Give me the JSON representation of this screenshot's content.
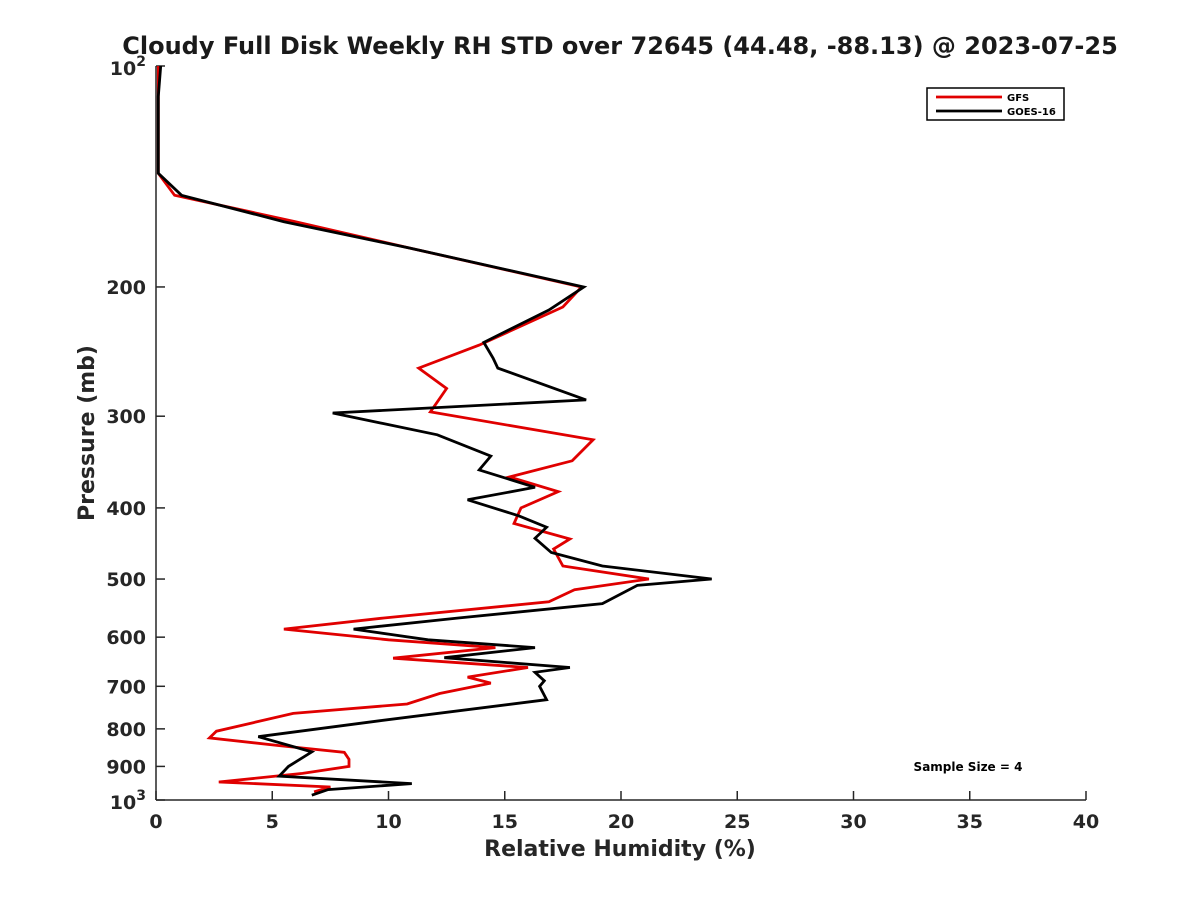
{
  "chart_data": {
    "type": "line",
    "title": "Cloudy Full Disk Weekly RH STD over 72645 (44.48, -88.13) @ 2023-07-25",
    "xlabel": "Relative Humidity (%)",
    "ylabel": "Pressure (mb)",
    "xlim": [
      0,
      40
    ],
    "ylim": [
      100,
      1000
    ],
    "y_scale": "log",
    "y_reversed": false,
    "xticks": [
      0,
      5,
      10,
      15,
      20,
      25,
      30,
      35,
      40
    ],
    "yticks": [
      {
        "value": 100,
        "base": "10",
        "exp": "2"
      },
      {
        "value": 200,
        "label": "200"
      },
      {
        "value": 300,
        "label": "300"
      },
      {
        "value": 400,
        "label": "400"
      },
      {
        "value": 500,
        "label": "500"
      },
      {
        "value": 600,
        "label": "600"
      },
      {
        "value": 700,
        "label": "700"
      },
      {
        "value": 800,
        "label": "800"
      },
      {
        "value": 900,
        "label": "900"
      },
      {
        "value": 1000,
        "base": "10",
        "exp": "3"
      }
    ],
    "grid": false,
    "legend_position": "top-right",
    "annotation": "Sample Size = 4",
    "series": [
      {
        "name": "GFS",
        "color": "#e00000",
        "points": [
          [
            0.1,
            100
          ],
          [
            0.1,
            110
          ],
          [
            0.1,
            125
          ],
          [
            0.1,
            135
          ],
          [
            0.1,
            140
          ],
          [
            0.8,
            150
          ],
          [
            6.0,
            163
          ],
          [
            10.9,
            177
          ],
          [
            18.3,
            200
          ],
          [
            17.5,
            213
          ],
          [
            13.9,
            240
          ],
          [
            11.3,
            258
          ],
          [
            12.5,
            275
          ],
          [
            11.8,
            296
          ],
          [
            18.8,
            323
          ],
          [
            17.9,
            345
          ],
          [
            15.2,
            363
          ],
          [
            17.3,
            380
          ],
          [
            15.7,
            400
          ],
          [
            15.4,
            420
          ],
          [
            17.8,
            441
          ],
          [
            17.1,
            455
          ],
          [
            17.5,
            480
          ],
          [
            21.2,
            500
          ],
          [
            18.0,
            517
          ],
          [
            16.9,
            537
          ],
          [
            9.8,
            565
          ],
          [
            5.5,
            585
          ],
          [
            10.0,
            605
          ],
          [
            14.6,
            620
          ],
          [
            10.2,
            641
          ],
          [
            16.0,
            660
          ],
          [
            13.4,
            680
          ],
          [
            14.4,
            693
          ],
          [
            12.2,
            716
          ],
          [
            10.8,
            740
          ],
          [
            5.9,
            762
          ],
          [
            2.6,
            806
          ],
          [
            2.3,
            823
          ],
          [
            5.3,
            843
          ],
          [
            8.1,
            861
          ],
          [
            8.3,
            880
          ],
          [
            8.3,
            900
          ],
          [
            6.3,
            920
          ],
          [
            2.7,
            945
          ],
          [
            7.5,
            960
          ],
          [
            6.8,
            975
          ]
        ]
      },
      {
        "name": "GOES-16",
        "color": "#000000",
        "points": [
          [
            0.2,
            100
          ],
          [
            0.1,
            110
          ],
          [
            0.1,
            125
          ],
          [
            0.1,
            135
          ],
          [
            0.1,
            140
          ],
          [
            1.1,
            150
          ],
          [
            5.5,
            163
          ],
          [
            10.9,
            177
          ],
          [
            18.4,
            200
          ],
          [
            16.9,
            215
          ],
          [
            14.1,
            238
          ],
          [
            14.5,
            250
          ],
          [
            14.7,
            258
          ],
          [
            18.5,
            285
          ],
          [
            7.6,
            297
          ],
          [
            12.1,
            318
          ],
          [
            14.4,
            340
          ],
          [
            13.9,
            355
          ],
          [
            16.3,
            375
          ],
          [
            13.4,
            390
          ],
          [
            15.6,
            410
          ],
          [
            16.8,
            425
          ],
          [
            16.3,
            440
          ],
          [
            17.0,
            460
          ],
          [
            19.2,
            480
          ],
          [
            23.9,
            500
          ],
          [
            20.7,
            510
          ],
          [
            19.2,
            540
          ],
          [
            13.0,
            565
          ],
          [
            8.5,
            585
          ],
          [
            11.7,
            605
          ],
          [
            16.3,
            620
          ],
          [
            12.4,
            640
          ],
          [
            17.8,
            660
          ],
          [
            16.3,
            670
          ],
          [
            16.7,
            688
          ],
          [
            16.5,
            700
          ],
          [
            16.8,
            730
          ],
          [
            9.6,
            780
          ],
          [
            4.4,
            820
          ],
          [
            6.7,
            860
          ],
          [
            5.7,
            900
          ],
          [
            5.3,
            928
          ],
          [
            11.0,
            950
          ],
          [
            7.4,
            968
          ],
          [
            6.7,
            985
          ]
        ]
      }
    ]
  }
}
